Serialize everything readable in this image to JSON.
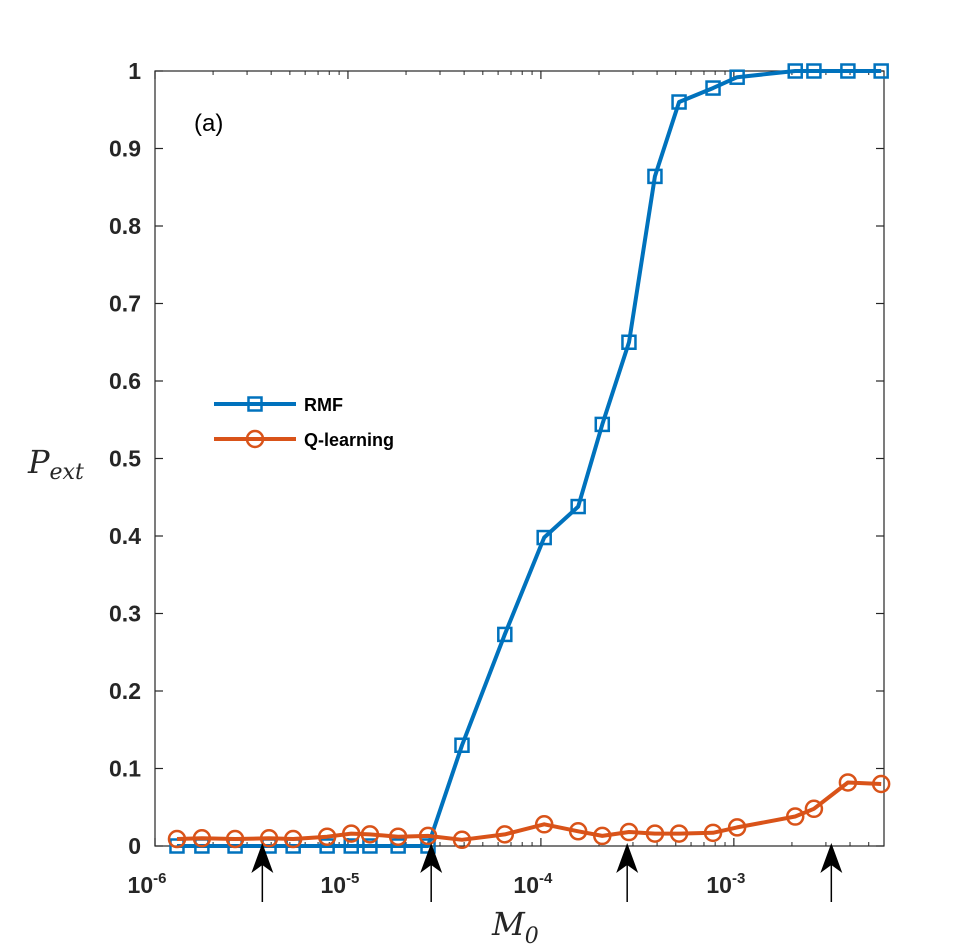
{
  "chart_data": {
    "type": "line",
    "annotation": "(a)",
    "xlabel": {
      "main": "M",
      "sub": "0"
    },
    "ylabel": {
      "main": "P",
      "sub": "ext"
    },
    "xscale": "log",
    "xlim": [
      1e-06,
      0.006
    ],
    "ylim": [
      0,
      1
    ],
    "x_ticks": [
      {
        "base": "10",
        "exp": "-6",
        "value": 1e-06
      },
      {
        "base": "10",
        "exp": "-5",
        "value": 1e-05
      },
      {
        "base": "10",
        "exp": "-4",
        "value": 0.0001
      },
      {
        "base": "10",
        "exp": "-3",
        "value": 0.001
      }
    ],
    "y_ticks": [
      "0",
      "0.1",
      "0.2",
      "0.3",
      "0.4",
      "0.5",
      "0.6",
      "0.7",
      "0.8",
      "0.9",
      "1"
    ],
    "arrows_at_x": [
      3.6e-06,
      2.7e-05,
      0.00028,
      0.0032
    ],
    "legend_position": "center-left",
    "colors": {
      "rmf": "#0072BD",
      "qlearning": "#D95319",
      "axis": "#262626",
      "arrow": "#000000"
    },
    "series": [
      {
        "name": "RMF",
        "marker": "square",
        "x": [
          1.3e-06,
          1.75e-06,
          2.6e-06,
          3.9e-06,
          5.2e-06,
          7.8e-06,
          1.04e-05,
          1.3e-05,
          1.82e-05,
          2.6e-05,
          3.9e-05,
          6.5e-05,
          0.000104,
          0.000156,
          0.000208,
          0.000286,
          0.00039,
          0.00052,
          0.00078,
          0.00104,
          0.00208,
          0.0026,
          0.0039,
          0.0058
        ],
        "values": [
          0,
          0,
          0,
          0,
          0,
          0,
          0,
          0,
          0,
          0,
          0.13,
          0.273,
          0.398,
          0.438,
          0.544,
          0.65,
          0.864,
          0.96,
          0.978,
          0.992,
          1.0,
          1.0,
          1.0,
          1.0
        ]
      },
      {
        "name": "Q-learning",
        "marker": "circle",
        "x": [
          1.3e-06,
          1.75e-06,
          2.6e-06,
          3.9e-06,
          5.2e-06,
          7.8e-06,
          1.04e-05,
          1.3e-05,
          1.82e-05,
          2.6e-05,
          3.9e-05,
          6.5e-05,
          0.000104,
          0.000156,
          0.000208,
          0.000286,
          0.00039,
          0.00052,
          0.00078,
          0.00104,
          0.00208,
          0.0026,
          0.0039,
          0.0058
        ],
        "values": [
          0.009,
          0.01,
          0.009,
          0.01,
          0.009,
          0.012,
          0.016,
          0.015,
          0.012,
          0.013,
          0.008,
          0.015,
          0.028,
          0.019,
          0.013,
          0.018,
          0.016,
          0.016,
          0.017,
          0.024,
          0.038,
          0.048,
          0.082,
          0.08
        ]
      }
    ]
  }
}
